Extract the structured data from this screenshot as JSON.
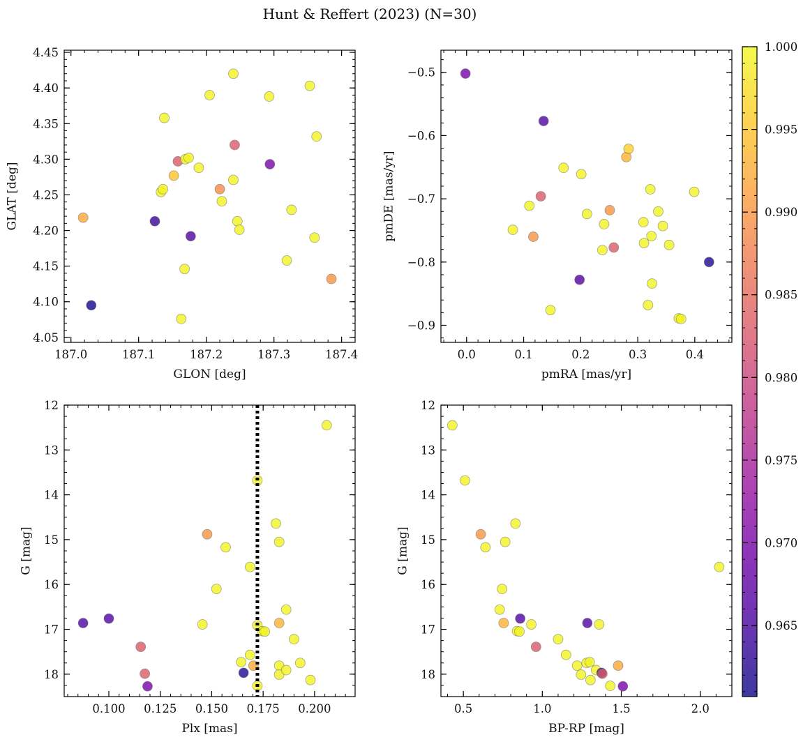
{
  "chart_data": {
    "title": "Hunt & Reffert (2023) (N=30)",
    "type": "scatter",
    "color_scale": {
      "name": "plasma",
      "range": [
        0.9607,
        1.0
      ],
      "ticks": [
        "0.965",
        "0.970",
        "0.975",
        "0.980",
        "0.985",
        "0.990",
        "0.995",
        "1.000"
      ],
      "tick_values": [
        0.965,
        0.97,
        0.975,
        0.98,
        0.985,
        0.99,
        0.995,
        1.0
      ],
      "stops": [
        "#0d0887",
        "#46039f",
        "#7201a8",
        "#9c179e",
        "#bd3786",
        "#d8576b",
        "#ed7953",
        "#fb9f3a",
        "#fdca26",
        "#f0f921"
      ],
      "alpha": 0.8
    },
    "panels": [
      {
        "id": "glon-glat",
        "xlabel": "GLON [deg]",
        "ylabel": "GLAT [deg]",
        "xlim": [
          186.99,
          187.42
        ],
        "ylim": [
          4.043,
          4.453
        ],
        "y_inverted": false,
        "xticks": [
          187.0,
          187.1,
          187.2,
          187.3,
          187.4
        ],
        "xtick_labels": [
          "187.0",
          "187.1",
          "187.2",
          "187.3",
          "187.4"
        ],
        "yticks": [
          4.05,
          4.1,
          4.15,
          4.2,
          4.25,
          4.3,
          4.35,
          4.4,
          4.45
        ],
        "ytick_labels": [
          "4.05",
          "4.10",
          "4.15",
          "4.20",
          "4.25",
          "4.30",
          "4.35",
          "4.40",
          "4.45"
        ],
        "x_minor": 0.02,
        "y_minor": 0.01,
        "points": [
          {
            "x": 187.018,
            "y": 4.218,
            "p": 0.992
          },
          {
            "x": 187.03,
            "y": 4.095,
            "p": 0.961
          },
          {
            "x": 187.124,
            "y": 4.213,
            "p": 0.964
          },
          {
            "x": 187.133,
            "y": 4.254,
            "p": 0.9995
          },
          {
            "x": 187.136,
            "y": 4.258,
            "p": 0.9995
          },
          {
            "x": 187.138,
            "y": 4.358,
            "p": 0.9995
          },
          {
            "x": 187.152,
            "y": 4.277,
            "p": 0.995
          },
          {
            "x": 187.158,
            "y": 4.297,
            "p": 0.983
          },
          {
            "x": 187.163,
            "y": 4.076,
            "p": 0.9995
          },
          {
            "x": 187.168,
            "y": 4.146,
            "p": 0.9995
          },
          {
            "x": 187.169,
            "y": 4.3,
            "p": 0.9995
          },
          {
            "x": 187.174,
            "y": 4.302,
            "p": 0.9995
          },
          {
            "x": 187.177,
            "y": 4.192,
            "p": 0.966
          },
          {
            "x": 187.189,
            "y": 4.288,
            "p": 0.9995
          },
          {
            "x": 187.205,
            "y": 4.39,
            "p": 0.9995
          },
          {
            "x": 187.22,
            "y": 4.258,
            "p": 0.989
          },
          {
            "x": 187.223,
            "y": 4.241,
            "p": 0.9995
          },
          {
            "x": 187.24,
            "y": 4.271,
            "p": 0.9995
          },
          {
            "x": 187.24,
            "y": 4.42,
            "p": 0.9995
          },
          {
            "x": 187.242,
            "y": 4.32,
            "p": 0.983
          },
          {
            "x": 187.246,
            "y": 4.213,
            "p": 0.9995
          },
          {
            "x": 187.249,
            "y": 4.201,
            "p": 0.9995
          },
          {
            "x": 187.293,
            "y": 4.388,
            "p": 0.9995
          },
          {
            "x": 187.294,
            "y": 4.293,
            "p": 0.97
          },
          {
            "x": 187.319,
            "y": 4.158,
            "p": 0.9995
          },
          {
            "x": 187.326,
            "y": 4.229,
            "p": 0.9995
          },
          {
            "x": 187.353,
            "y": 4.403,
            "p": 0.9995
          },
          {
            "x": 187.36,
            "y": 4.19,
            "p": 0.9995
          },
          {
            "x": 187.363,
            "y": 4.332,
            "p": 0.9995
          },
          {
            "x": 187.385,
            "y": 4.132,
            "p": 0.99
          }
        ]
      },
      {
        "id": "pmra-pmde",
        "xlabel": "pmRA [mas/yr]",
        "ylabel": "pmDE [mas/yr]",
        "xlim": [
          -0.045,
          0.465
        ],
        "ylim": [
          -0.927,
          -0.465
        ],
        "y_inverted": false,
        "xticks": [
          0.0,
          0.1,
          0.2,
          0.3,
          0.4
        ],
        "xtick_labels": [
          "0.0",
          "0.1",
          "0.2",
          "0.3",
          "0.4"
        ],
        "yticks": [
          -0.9,
          -0.8,
          -0.7,
          -0.6,
          -0.5
        ],
        "ytick_labels": [
          "−0.9",
          "−0.8",
          "−0.7",
          "−0.6",
          "−0.5"
        ],
        "x_minor": 0.02,
        "y_minor": 0.02,
        "points": [
          {
            "x": -0.002,
            "y": -0.502,
            "p": 0.97
          },
          {
            "x": 0.081,
            "y": -0.749,
            "p": 0.9995
          },
          {
            "x": 0.11,
            "y": -0.711,
            "p": 0.9995
          },
          {
            "x": 0.117,
            "y": -0.76,
            "p": 0.99
          },
          {
            "x": 0.13,
            "y": -0.696,
            "p": 0.983
          },
          {
            "x": 0.135,
            "y": -0.577,
            "p": 0.966
          },
          {
            "x": 0.147,
            "y": -0.876,
            "p": 0.9995
          },
          {
            "x": 0.17,
            "y": -0.651,
            "p": 0.9995
          },
          {
            "x": 0.198,
            "y": -0.828,
            "p": 0.966
          },
          {
            "x": 0.201,
            "y": -0.661,
            "p": 0.9995
          },
          {
            "x": 0.211,
            "y": -0.724,
            "p": 0.9995
          },
          {
            "x": 0.238,
            "y": -0.781,
            "p": 0.9995
          },
          {
            "x": 0.241,
            "y": -0.74,
            "p": 0.9995
          },
          {
            "x": 0.251,
            "y": -0.718,
            "p": 0.99
          },
          {
            "x": 0.258,
            "y": -0.777,
            "p": 0.983
          },
          {
            "x": 0.28,
            "y": -0.634,
            "p": 0.993
          },
          {
            "x": 0.284,
            "y": -0.621,
            "p": 0.996
          },
          {
            "x": 0.31,
            "y": -0.737,
            "p": 0.9995
          },
          {
            "x": 0.311,
            "y": -0.77,
            "p": 0.9995
          },
          {
            "x": 0.318,
            "y": -0.868,
            "p": 0.9995
          },
          {
            "x": 0.322,
            "y": -0.685,
            "p": 0.9995
          },
          {
            "x": 0.324,
            "y": -0.759,
            "p": 0.9995
          },
          {
            "x": 0.325,
            "y": -0.834,
            "p": 0.9995
          },
          {
            "x": 0.336,
            "y": -0.72,
            "p": 0.9995
          },
          {
            "x": 0.344,
            "y": -0.743,
            "p": 0.9995
          },
          {
            "x": 0.355,
            "y": -0.773,
            "p": 0.9995
          },
          {
            "x": 0.372,
            "y": -0.889,
            "p": 0.9995
          },
          {
            "x": 0.376,
            "y": -0.89,
            "p": 0.9995
          },
          {
            "x": 0.399,
            "y": -0.689,
            "p": 0.9995
          },
          {
            "x": 0.425,
            "y": -0.8,
            "p": 0.962
          }
        ]
      },
      {
        "id": "plx-g",
        "xlabel": "Plx [mas]",
        "ylabel": "G [mag]",
        "xlim": [
          0.0783,
          0.2197
        ],
        "ylim": [
          18.5,
          12.0
        ],
        "y_inverted": true,
        "xticks": [
          0.1,
          0.125,
          0.15,
          0.175,
          0.2
        ],
        "xtick_labels": [
          "0.100",
          "0.125",
          "0.150",
          "0.175",
          "0.200"
        ],
        "yticks": [
          12,
          13,
          14,
          15,
          16,
          17,
          18
        ],
        "ytick_labels": [
          "12",
          "13",
          "14",
          "15",
          "16",
          "17",
          "18"
        ],
        "x_minor": 0.005,
        "y_minor": 0.25,
        "vline": {
          "x": 0.1722,
          "style": "dotted",
          "color": "#000000"
        },
        "points": [
          {
            "x": 0.0875,
            "y": 16.86,
            "p": 0.966
          },
          {
            "x": 0.1,
            "y": 16.76,
            "p": 0.966
          },
          {
            "x": 0.1155,
            "y": 17.39,
            "p": 0.983
          },
          {
            "x": 0.1175,
            "y": 17.99,
            "p": 0.983
          },
          {
            "x": 0.1188,
            "y": 18.27,
            "p": 0.97
          },
          {
            "x": 0.1455,
            "y": 16.89,
            "p": 0.9995
          },
          {
            "x": 0.1478,
            "y": 14.88,
            "p": 0.99
          },
          {
            "x": 0.1523,
            "y": 16.1,
            "p": 0.9995
          },
          {
            "x": 0.1568,
            "y": 15.17,
            "p": 0.9995
          },
          {
            "x": 0.1643,
            "y": 17.73,
            "p": 0.9995
          },
          {
            "x": 0.1655,
            "y": 17.97,
            "p": 0.962
          },
          {
            "x": 0.1686,
            "y": 15.61,
            "p": 0.9995
          },
          {
            "x": 0.1686,
            "y": 17.57,
            "p": 0.9995
          },
          {
            "x": 0.1703,
            "y": 17.81,
            "p": 0.992
          },
          {
            "x": 0.1722,
            "y": 13.68,
            "p": 0.9995
          },
          {
            "x": 0.1722,
            "y": 16.91,
            "p": 0.9995
          },
          {
            "x": 0.1722,
            "y": 18.26,
            "p": 0.9995
          },
          {
            "x": 0.1746,
            "y": 17.04,
            "p": 0.9995
          },
          {
            "x": 0.1758,
            "y": 17.05,
            "p": 0.9995
          },
          {
            "x": 0.1812,
            "y": 14.64,
            "p": 0.9995
          },
          {
            "x": 0.1828,
            "y": 15.05,
            "p": 0.9995
          },
          {
            "x": 0.1828,
            "y": 16.86,
            "p": 0.993
          },
          {
            "x": 0.1828,
            "y": 17.81,
            "p": 0.9995
          },
          {
            "x": 0.1828,
            "y": 18.01,
            "p": 0.9995
          },
          {
            "x": 0.1862,
            "y": 16.56,
            "p": 0.9995
          },
          {
            "x": 0.1862,
            "y": 17.91,
            "p": 0.9995
          },
          {
            "x": 0.19,
            "y": 17.22,
            "p": 0.9995
          },
          {
            "x": 0.193,
            "y": 17.75,
            "p": 0.9995
          },
          {
            "x": 0.198,
            "y": 18.13,
            "p": 0.9995
          },
          {
            "x": 0.2059,
            "y": 12.45,
            "p": 0.9995
          }
        ]
      },
      {
        "id": "bprp-g",
        "xlabel": "BP-RP [mag]",
        "ylabel": "G [mag]",
        "xlim": [
          0.358,
          2.2
        ],
        "ylim": [
          18.5,
          12.0
        ],
        "y_inverted": true,
        "xticks": [
          0.5,
          1.0,
          1.5,
          2.0
        ],
        "xtick_labels": [
          "0.5",
          "1.0",
          "1.5",
          "2.0"
        ],
        "yticks": [
          12,
          13,
          14,
          15,
          16,
          17,
          18
        ],
        "ytick_labels": [
          "12",
          "13",
          "14",
          "15",
          "16",
          "17",
          "18"
        ],
        "x_minor": 0.1,
        "y_minor": 0.25,
        "points": [
          {
            "x": 0.43,
            "y": 12.45,
            "p": 0.9995
          },
          {
            "x": 0.51,
            "y": 13.68,
            "p": 0.9995
          },
          {
            "x": 0.61,
            "y": 14.88,
            "p": 0.99
          },
          {
            "x": 0.64,
            "y": 15.17,
            "p": 0.9995
          },
          {
            "x": 0.73,
            "y": 16.56,
            "p": 0.9995
          },
          {
            "x": 0.745,
            "y": 16.1,
            "p": 0.9995
          },
          {
            "x": 0.755,
            "y": 16.86,
            "p": 0.993
          },
          {
            "x": 0.765,
            "y": 15.05,
            "p": 0.9995
          },
          {
            "x": 0.83,
            "y": 14.64,
            "p": 0.9995
          },
          {
            "x": 0.84,
            "y": 17.04,
            "p": 0.9995
          },
          {
            "x": 0.855,
            "y": 17.05,
            "p": 0.9995
          },
          {
            "x": 0.86,
            "y": 16.76,
            "p": 0.966
          },
          {
            "x": 0.93,
            "y": 16.89,
            "p": 0.9995
          },
          {
            "x": 0.96,
            "y": 17.39,
            "p": 0.983
          },
          {
            "x": 1.1,
            "y": 17.22,
            "p": 0.9995
          },
          {
            "x": 1.15,
            "y": 17.57,
            "p": 0.9995
          },
          {
            "x": 1.22,
            "y": 17.81,
            "p": 0.9995
          },
          {
            "x": 1.245,
            "y": 18.01,
            "p": 0.9995
          },
          {
            "x": 1.28,
            "y": 17.75,
            "p": 0.9995
          },
          {
            "x": 1.285,
            "y": 16.86,
            "p": 0.966
          },
          {
            "x": 1.3,
            "y": 17.73,
            "p": 0.9995
          },
          {
            "x": 1.305,
            "y": 18.13,
            "p": 0.9995
          },
          {
            "x": 1.34,
            "y": 17.91,
            "p": 0.9995
          },
          {
            "x": 1.36,
            "y": 16.89,
            "p": 0.9995
          },
          {
            "x": 1.375,
            "y": 17.97,
            "p": 0.962
          },
          {
            "x": 1.38,
            "y": 17.99,
            "p": 0.983
          },
          {
            "x": 1.43,
            "y": 18.26,
            "p": 0.9995
          },
          {
            "x": 1.48,
            "y": 17.81,
            "p": 0.992
          },
          {
            "x": 1.51,
            "y": 18.27,
            "p": 0.97
          },
          {
            "x": 2.12,
            "y": 15.61,
            "p": 0.9995
          }
        ]
      }
    ]
  }
}
